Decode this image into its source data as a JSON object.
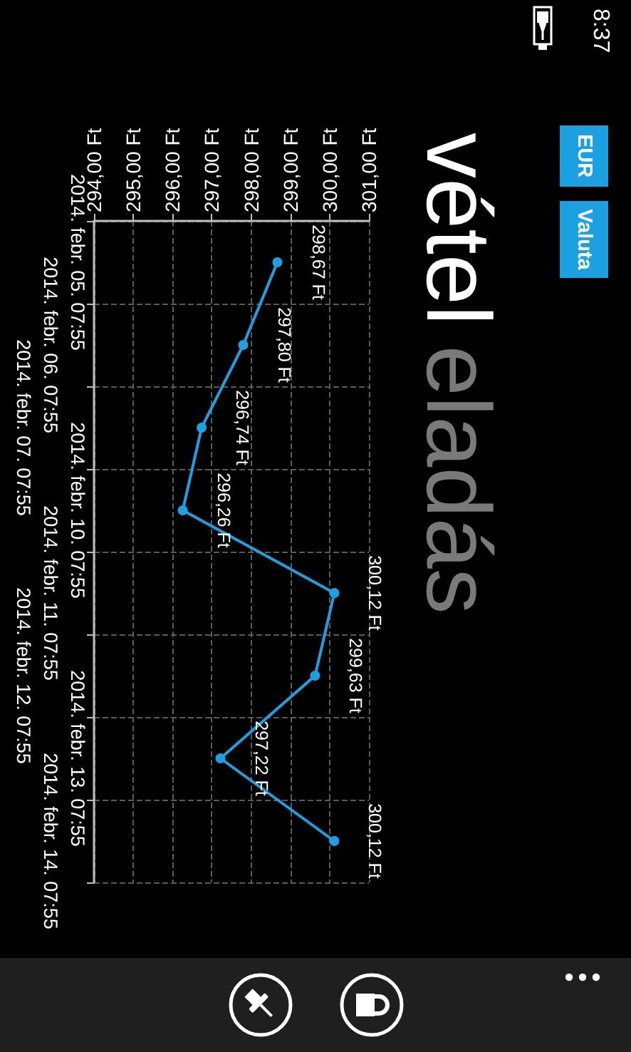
{
  "chart_data": {
    "type": "line",
    "orientation": "horizontal",
    "title": "vétel",
    "subtitle": "eladás",
    "annotations": [
      "8:37",
      "EUR",
      "Valuta"
    ],
    "categories": [
      "2014. febr. 05. 07:55",
      "2014. febr. 06. 07:55",
      "2014. febr. 07. 07:55",
      "2014. febr. 10. 07:55",
      "2014. febr. 11. 07:55",
      "2014. febr. 12. 07:55",
      "2014. febr. 13. 07:55",
      "2014. febr. 14. 07:55"
    ],
    "values": [
      298.67,
      297.8,
      296.74,
      296.26,
      300.12,
      299.63,
      297.22,
      300.12
    ],
    "value_labels": [
      "298,67 Ft",
      "297,80 Ft",
      "296,74 Ft",
      "296,26 Ft",
      "300,12 Ft",
      "299,63 Ft",
      "297,22 Ft",
      "300,12 Ft"
    ],
    "color": "#1ba1e2",
    "xlim": [
      294,
      301
    ],
    "xticks": [
      {
        "value": 294,
        "label": "294,00 Ft"
      },
      {
        "value": 295,
        "label": "295,00 Ft"
      },
      {
        "value": 296,
        "label": "296,00 Ft"
      },
      {
        "value": 297,
        "label": "297,00 Ft"
      },
      {
        "value": 298,
        "label": "298,00 Ft"
      },
      {
        "value": 299,
        "label": "299,00 Ft"
      },
      {
        "value": 300,
        "label": "300,00 Ft"
      },
      {
        "value": 301,
        "label": "301,00 Ft"
      }
    ],
    "grid": true,
    "marker": "circle"
  }
}
